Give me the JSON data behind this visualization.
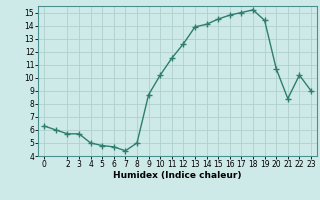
{
  "x": [
    0,
    1,
    2,
    3,
    4,
    5,
    6,
    7,
    8,
    9,
    10,
    11,
    12,
    13,
    14,
    15,
    16,
    17,
    18,
    19,
    20,
    21,
    22,
    23
  ],
  "y": [
    6.3,
    6.0,
    5.7,
    5.7,
    5.0,
    4.8,
    4.7,
    4.4,
    5.0,
    8.7,
    10.2,
    11.5,
    12.6,
    13.9,
    14.1,
    14.5,
    14.8,
    15.0,
    15.2,
    14.4,
    10.7,
    8.4,
    10.2,
    9.0
  ],
  "line_color": "#2e7d6e",
  "marker": "+",
  "markersize": 4,
  "linewidth": 1.0,
  "bg_color": "#ceeae8",
  "grid_color": "#b0d0cc",
  "xlabel": "Humidex (Indice chaleur)",
  "xlim": [
    -0.5,
    23.5
  ],
  "ylim": [
    4,
    15.5
  ],
  "yticks": [
    4,
    5,
    6,
    7,
    8,
    9,
    10,
    11,
    12,
    13,
    14,
    15
  ],
  "xticks": [
    0,
    2,
    3,
    4,
    5,
    6,
    7,
    8,
    9,
    10,
    11,
    12,
    13,
    14,
    15,
    16,
    17,
    18,
    19,
    20,
    21,
    22,
    23
  ],
  "tick_fontsize": 5.5,
  "xlabel_fontsize": 6.5,
  "markeredgewidth": 1.0,
  "spine_color": "#4a9090"
}
